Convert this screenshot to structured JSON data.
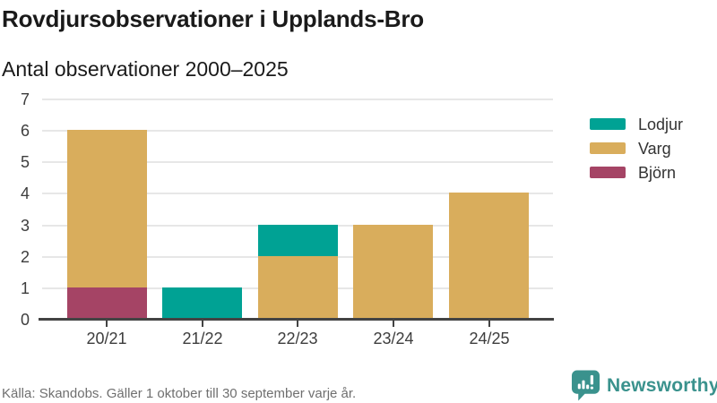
{
  "header": {
    "title": "Rovdjursobservationer i Upplands-Bro",
    "subtitle": "Antal observationer 2000–2025"
  },
  "chart_data": {
    "type": "bar",
    "stacked": true,
    "title": "Rovdjursobservationer i Upplands-Bro",
    "subtitle": "Antal observationer 2000–2025",
    "categories": [
      "20/21",
      "21/22",
      "22/23",
      "23/24",
      "24/25"
    ],
    "series": [
      {
        "name": "Lodjur",
        "color": "#00a294",
        "values": [
          0,
          1,
          1,
          0,
          0
        ]
      },
      {
        "name": "Varg",
        "color": "#d9ad5c",
        "values": [
          5,
          0,
          2,
          3,
          4
        ]
      },
      {
        "name": "Björn",
        "color": "#a54465",
        "values": [
          1,
          0,
          0,
          0,
          0
        ]
      }
    ],
    "stack_order_bottom_to_top": [
      "Björn",
      "Varg",
      "Lodjur"
    ],
    "totals": [
      6,
      1,
      3,
      3,
      4
    ],
    "ylim": [
      0,
      7
    ],
    "yticks": [
      0,
      1,
      2,
      3,
      4,
      5,
      6,
      7
    ],
    "grid": true,
    "legend_position": "right"
  },
  "footer": {
    "source": "Källa: Skandobs. Gäller 1 oktober till 30 september varje år."
  },
  "branding": {
    "logo_text": "Newsworthy",
    "logo_color": "#3a928d",
    "logo_icon": "chart-speech-bubble"
  }
}
